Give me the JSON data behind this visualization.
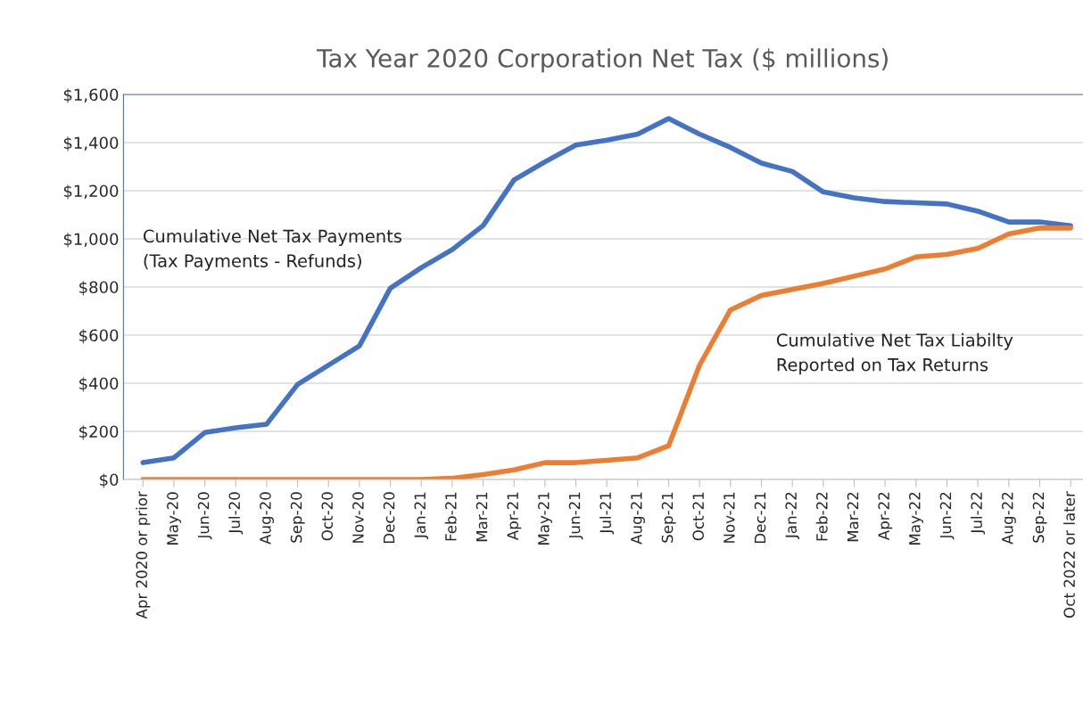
{
  "chart_data": {
    "type": "line",
    "title": "Tax Year 2020 Corporation Net Tax ($ millions)",
    "categories": [
      "Apr 2020 or prior",
      "May-20",
      "Jun-20",
      "Jul-20",
      "Aug-20",
      "Sep-20",
      "Oct-20",
      "Nov-20",
      "Dec-20",
      "Jan-21",
      "Feb-21",
      "Mar-21",
      "Apr-21",
      "May-21",
      "Jun-21",
      "Jul-21",
      "Aug-21",
      "Sep-21",
      "Oct-21",
      "Nov-21",
      "Dec-21",
      "Jan-22",
      "Feb-22",
      "Mar-22",
      "Apr-22",
      "May-22",
      "Jun-22",
      "Jul-22",
      "Aug-22",
      "Sep-22",
      "Oct 2022 or later"
    ],
    "series": [
      {
        "name": "Cumulative Net Tax Payments\n(Tax Payments - Refunds)",
        "color": "#4472c4",
        "values": [
          70,
          90,
          195,
          215,
          230,
          395,
          475,
          555,
          795,
          880,
          955,
          1055,
          1245,
          1320,
          1390,
          1410,
          1435,
          1500,
          1435,
          1380,
          1315,
          1280,
          1195,
          1170,
          1155,
          1150,
          1145,
          1115,
          1070,
          1070,
          1055
        ]
      },
      {
        "name": "Cumulative Net Tax Liabilty\nReported on Tax Returns",
        "color": "#ed7d31",
        "values": [
          0,
          0,
          0,
          0,
          0,
          0,
          0,
          0,
          0,
          0,
          5,
          20,
          40,
          70,
          70,
          80,
          90,
          140,
          475,
          705,
          765,
          790,
          815,
          845,
          875,
          925,
          935,
          960,
          1020,
          1045,
          1045
        ]
      }
    ],
    "ylim": [
      0,
      1600
    ],
    "yticks": [
      {
        "value": 0,
        "label": "$0"
      },
      {
        "value": 200,
        "label": "$200"
      },
      {
        "value": 400,
        "label": "$400"
      },
      {
        "value": 600,
        "label": "$600"
      },
      {
        "value": 800,
        "label": "$800"
      },
      {
        "value": 1000,
        "label": "$1,000"
      },
      {
        "value": 1200,
        "label": "$1,200"
      },
      {
        "value": 1400,
        "label": "$1,400"
      },
      {
        "value": 1600,
        "label": "$1,600"
      }
    ],
    "grid": "y",
    "legend": false,
    "marker": "none",
    "line_style": "solid"
  }
}
